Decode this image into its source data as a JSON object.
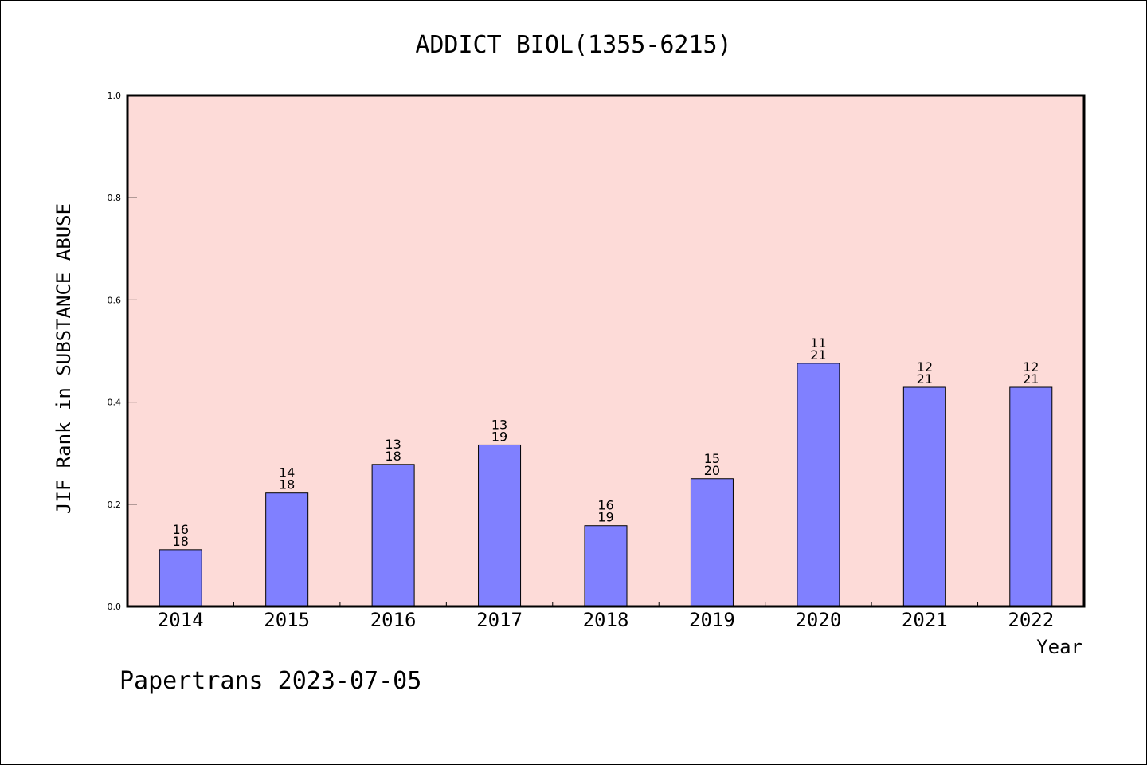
{
  "chart_data": {
    "type": "bar",
    "title": "ADDICT BIOL(1355-6215)",
    "xlabel": "Year",
    "ylabel": "JIF Rank in SUBSTANCE ABUSE",
    "ylim": [
      0,
      1.0
    ],
    "yticks": [
      "0.0",
      "0.2",
      "0.4",
      "0.6",
      "0.8",
      "1.0"
    ],
    "categories": [
      "2014",
      "2015",
      "2016",
      "2017",
      "2018",
      "2019",
      "2020",
      "2021",
      "2022"
    ],
    "values": [
      0.111,
      0.222,
      0.278,
      0.316,
      0.158,
      0.25,
      0.476,
      0.429,
      0.429
    ],
    "ranks": [
      "16",
      "14",
      "13",
      "13",
      "16",
      "15",
      "11",
      "12",
      "12"
    ],
    "totals": [
      "18",
      "18",
      "18",
      "19",
      "19",
      "20",
      "21",
      "21",
      "21"
    ],
    "grid": false,
    "colors": {
      "bar": "#8080ff",
      "plot_background": "#fddbd8",
      "axis": "#000000"
    }
  },
  "footer": "Papertrans 2023-07-05"
}
